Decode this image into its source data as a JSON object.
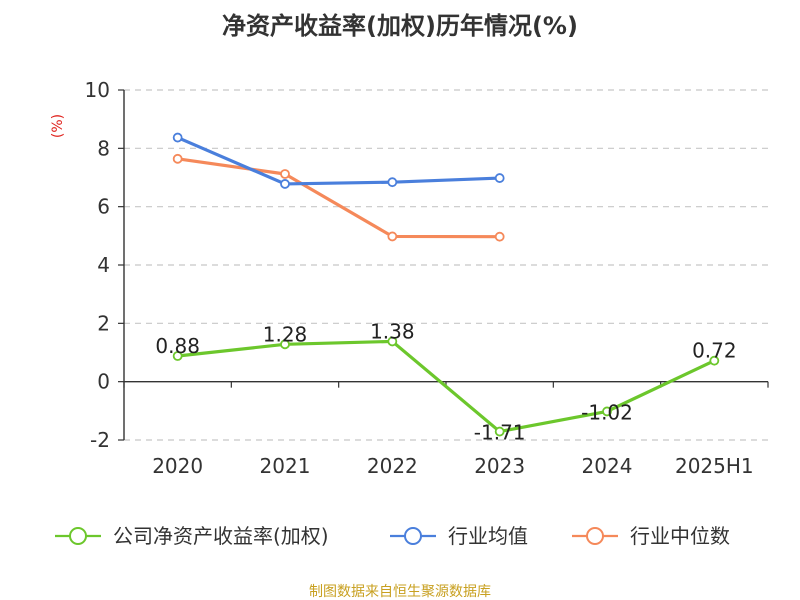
{
  "chart_data": {
    "type": "line",
    "title": "净资产收益率(加权)历年情况(%)",
    "ylabel": "(%)",
    "xlabel": "",
    "categories": [
      "2020",
      "2021",
      "2022",
      "2023",
      "2024",
      "2025H1"
    ],
    "ylim": [
      -2,
      10
    ],
    "yticks": [
      -2,
      0,
      2,
      4,
      6,
      8,
      10
    ],
    "grid": "horizontal dashed",
    "legend_position": "bottom",
    "series": [
      {
        "name": "公司净资产收益率(加权)",
        "color": "#6cc72c",
        "values": [
          0.88,
          1.28,
          1.38,
          -1.71,
          -1.02,
          0.72
        ],
        "labels": [
          "0.88",
          "1.28",
          "1.38",
          "-1.71",
          "-1.02",
          "0.72"
        ]
      },
      {
        "name": "行业均值",
        "color": "#4a7fdc",
        "values": [
          8.37,
          6.78,
          6.84,
          6.98,
          null,
          null
        ]
      },
      {
        "name": "行业中位数",
        "color": "#f5895a",
        "values": [
          7.64,
          7.12,
          4.98,
          4.97,
          null,
          null
        ]
      }
    ]
  },
  "footer": {
    "source": "制图数据来自恒生聚源数据库"
  }
}
